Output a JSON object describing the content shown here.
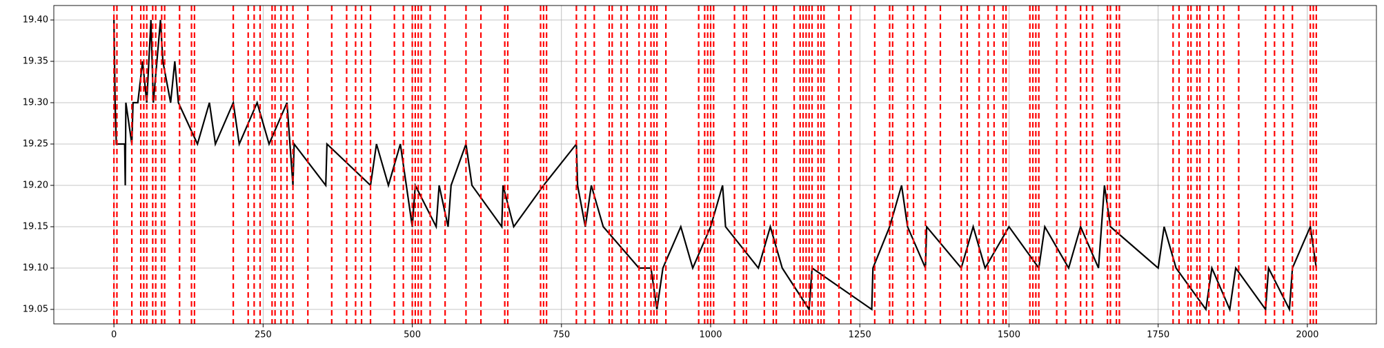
{
  "chart_data": {
    "type": "line",
    "series": [
      {
        "color": "#000000",
        "x": [
          0,
          2,
          4,
          18,
          19,
          20,
          30,
          32,
          40,
          48,
          55,
          62,
          66,
          72,
          78,
          82,
          95,
          102,
          108,
          140,
          160,
          170,
          200,
          210,
          240,
          260,
          290,
          300,
          302,
          355,
          357,
          430,
          440,
          460,
          480,
          500,
          505,
          540,
          545,
          560,
          565,
          590,
          600,
          650,
          652,
          670,
          720,
          775,
          777,
          790,
          800,
          820,
          880,
          900,
          910,
          920,
          950,
          970,
          1000,
          1020,
          1025,
          1080,
          1100,
          1120,
          1165,
          1170,
          1270,
          1272,
          1300,
          1320,
          1330,
          1360,
          1362,
          1420,
          1440,
          1460,
          1500,
          1550,
          1560,
          1600,
          1620,
          1650,
          1660,
          1670,
          1750,
          1760,
          1780,
          1830,
          1840,
          1870,
          1880,
          1930,
          1935,
          1970,
          1975,
          2005,
          2015
        ],
        "values": [
          19.4,
          19.3,
          19.25,
          19.25,
          19.2,
          19.3,
          19.25,
          19.3,
          19.3,
          19.35,
          19.3,
          19.4,
          19.3,
          19.35,
          19.4,
          19.35,
          19.3,
          19.35,
          19.3,
          19.25,
          19.3,
          19.25,
          19.3,
          19.25,
          19.3,
          19.25,
          19.3,
          19.2,
          19.25,
          19.2,
          19.25,
          19.2,
          19.25,
          19.2,
          19.25,
          19.15,
          19.2,
          19.15,
          19.2,
          19.15,
          19.2,
          19.25,
          19.2,
          19.15,
          19.2,
          19.15,
          19.2,
          19.25,
          19.2,
          19.15,
          19.2,
          19.15,
          19.1,
          19.1,
          19.05,
          19.1,
          19.15,
          19.1,
          19.15,
          19.2,
          19.15,
          19.1,
          19.15,
          19.1,
          19.05,
          19.1,
          19.05,
          19.1,
          19.15,
          19.2,
          19.15,
          19.1,
          19.15,
          19.1,
          19.15,
          19.1,
          19.15,
          19.1,
          19.15,
          19.1,
          19.15,
          19.1,
          19.2,
          19.15,
          19.1,
          19.15,
          19.1,
          19.05,
          19.1,
          19.05,
          19.1,
          19.05,
          19.1,
          19.05,
          19.1,
          19.15,
          19.1
        ]
      }
    ],
    "vlines": [
      0,
      5,
      30,
      45,
      50,
      55,
      65,
      70,
      80,
      85,
      110,
      130,
      135,
      200,
      225,
      235,
      245,
      265,
      270,
      280,
      290,
      300,
      325,
      365,
      390,
      405,
      415,
      430,
      470,
      485,
      500,
      505,
      510,
      515,
      530,
      555,
      590,
      615,
      655,
      660,
      715,
      720,
      725,
      775,
      790,
      805,
      830,
      835,
      850,
      860,
      880,
      890,
      900,
      905,
      910,
      925,
      980,
      990,
      995,
      1000,
      1005,
      1040,
      1055,
      1060,
      1090,
      1105,
      1110,
      1140,
      1150,
      1155,
      1160,
      1165,
      1170,
      1180,
      1185,
      1190,
      1215,
      1235,
      1275,
      1300,
      1305,
      1330,
      1340,
      1360,
      1385,
      1420,
      1430,
      1450,
      1465,
      1475,
      1490,
      1495,
      1535,
      1540,
      1545,
      1550,
      1580,
      1595,
      1620,
      1630,
      1640,
      1665,
      1670,
      1680,
      1685,
      1775,
      1785,
      1800,
      1805,
      1815,
      1820,
      1835,
      1850,
      1860,
      1885,
      1930,
      1945,
      1960,
      1975,
      2005,
      2010,
      2015
    ],
    "vline_color": "#ff0000",
    "xlim": [
      -100.75,
      2115.75
    ],
    "xticks": [
      0,
      250,
      500,
      750,
      1000,
      1250,
      1500,
      1750,
      2000
    ],
    "ylim": [
      19.0325,
      19.4175
    ],
    "yticks": [
      19.05,
      {
        "value": 19.1,
        "label": "19.10"
      },
      19.15,
      {
        "value": 19.2,
        "label": "19.20"
      },
      19.25,
      {
        "value": 19.3,
        "label": "19.30"
      },
      19.35,
      {
        "value": 19.4,
        "label": "19.40"
      }
    ],
    "grid": true
  }
}
